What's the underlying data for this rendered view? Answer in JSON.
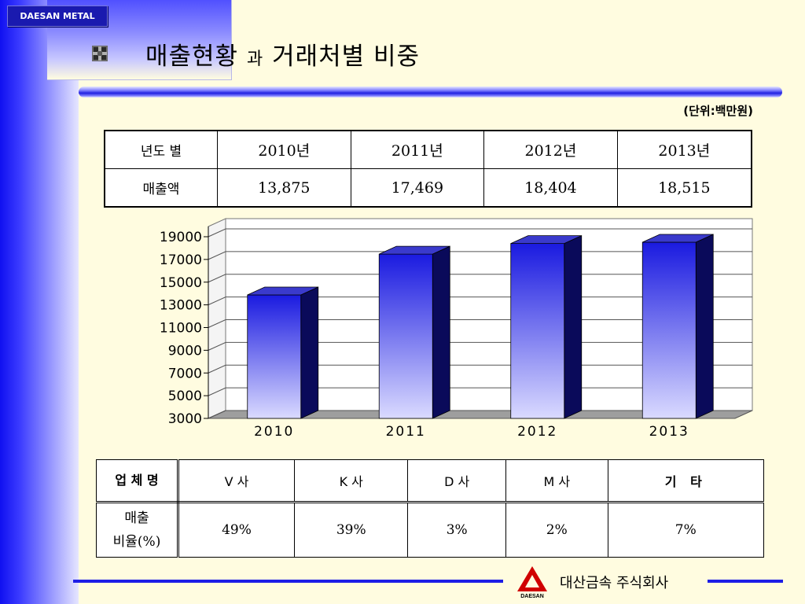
{
  "brand": {
    "label": "DAESAN METAL"
  },
  "title": {
    "main": "매출현황",
    "conj": "과",
    "rest": "거래처별 비중"
  },
  "unit": "(단위:백만원)",
  "sales_table": {
    "header": [
      "년도 별",
      "2010년",
      "2011년",
      "2012년",
      "2013년"
    ],
    "row": [
      "매출액",
      "13,875",
      "17,469",
      "18,404",
      "18,515"
    ]
  },
  "chart_data": {
    "type": "bar",
    "categories": [
      "2010",
      "2011",
      "2012",
      "2013"
    ],
    "values": [
      13875,
      17469,
      18404,
      18515
    ],
    "yticks": [
      "3000",
      "5000",
      "7000",
      "9000",
      "11000",
      "13000",
      "15000",
      "17000",
      "19000"
    ],
    "ylim": [
      3000,
      19000
    ],
    "grid": true,
    "bar_color": "#1A1AE0"
  },
  "share_table": {
    "header": [
      "업 체 명",
      "V 사",
      "K 사",
      "D 사",
      "M 사",
      "기  타"
    ],
    "row_label_line1": "매출",
    "row_label_line2": "비율(%)",
    "row": [
      "49%",
      "39%",
      "3%",
      "2%",
      "7%"
    ]
  },
  "footer": {
    "company": "대산금속 주식회사",
    "logo_text": "DAESAN"
  },
  "colors": {
    "accent_blue": "#1E1EE6",
    "background": "#FFFCE0"
  }
}
